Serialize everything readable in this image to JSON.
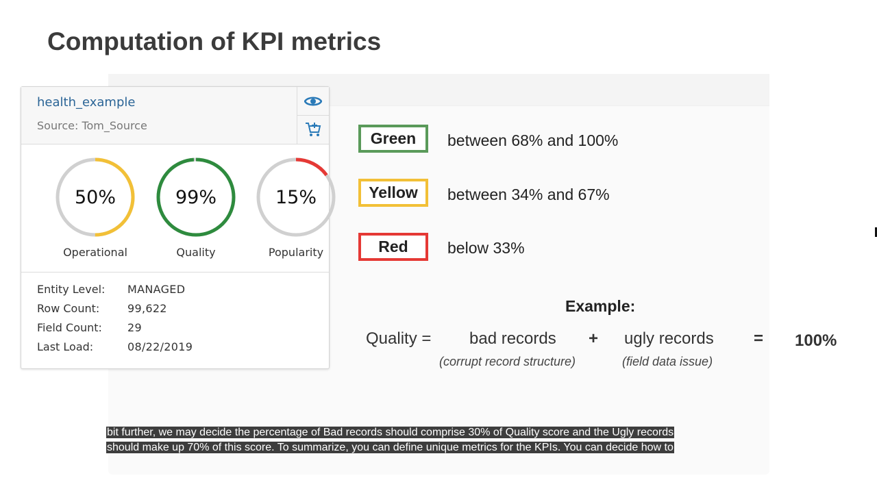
{
  "slide": {
    "title": "Computation of KPI metrics"
  },
  "card": {
    "entity_name": "health_example",
    "source_label": "Source:",
    "source_name": "Tom_Source",
    "gauges": [
      {
        "label": "Operational",
        "value_text": "50%",
        "value": 50,
        "color": "#f2c037"
      },
      {
        "label": "Quality",
        "value_text": "99%",
        "value": 99,
        "color": "#2e8b3e"
      },
      {
        "label": "Popularity",
        "value_text": "15%",
        "value": 15,
        "color": "#e53935"
      }
    ],
    "details": [
      {
        "label": "Entity Level:",
        "value": "MANAGED"
      },
      {
        "label": "Row Count:",
        "value": "99,622"
      },
      {
        "label": "Field Count:",
        "value": "29"
      },
      {
        "label": "Last Load:",
        "value": "08/22/2019"
      }
    ],
    "icons": {
      "view": "eye-icon",
      "cart": "add-to-cart-icon"
    }
  },
  "legend": [
    {
      "name": "Green",
      "range": "between 68% and 100%",
      "color": "#5a9a5a"
    },
    {
      "name": "Yellow",
      "range": "between 34% and 67%",
      "color": "#f2c037"
    },
    {
      "name": "Red",
      "range": "below 33%",
      "color": "#e53935"
    }
  ],
  "example": {
    "title": "Example:",
    "lhs": "Quality =",
    "term1": "bad records",
    "plus": "+",
    "term2": "ugly records",
    "equals": "=",
    "result": "100%",
    "note1": "(corrupt record structure)",
    "note2": "(field data issue)"
  },
  "caption": {
    "line1": "bit further, we may decide the percentage of Bad records should comprise 30% of Quality score and the Ugly records",
    "line2": "should make up 70% of this score. To summarize, you can define unique metrics for the KPIs. You can decide how to"
  }
}
